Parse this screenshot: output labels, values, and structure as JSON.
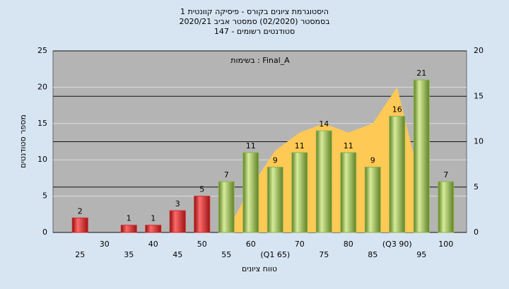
{
  "chart_data": {
    "type": "bar",
    "title": "היסטוגרמת ציונים בקורס - פיסיקה קוונטית 1",
    "subtitle": "בסמסטר  (02/2020)  סמסטר אביב 2020/21",
    "subtitle2": "סטודנטים רשומים - 147",
    "annotation": "בשימות : Final_A",
    "x_label": "טווח ציונים",
    "y_label": "מספר סטודנטים",
    "categories": [
      "25",
      "30",
      "35",
      "40",
      "45",
      "50",
      "55",
      "60",
      "(Q1 65)",
      "70",
      "75",
      "80",
      "85",
      "(Q3 90)",
      "95",
      "100"
    ],
    "values": [
      2,
      null,
      1,
      1,
      3,
      5,
      7,
      11,
      9,
      11,
      14,
      11,
      9,
      16,
      21,
      7
    ],
    "colors": [
      "#d42a2a",
      "#d42a2a",
      "#d42a2a",
      "#d42a2a",
      "#d42a2a",
      "#d42a2a",
      "#8db64a",
      "#8db64a",
      "#8db64a",
      "#8db64a",
      "#8db64a",
      "#8db64a",
      "#8db64a",
      "#8db64a",
      "#8db64a",
      "#8db64a"
    ],
    "area": {
      "color": "#ffc955",
      "axis": "y2",
      "values": [
        null,
        null,
        null,
        null,
        null,
        null,
        0,
        5,
        9,
        11,
        12,
        11,
        12,
        16,
        5,
        null
      ]
    },
    "ylim": [
      0,
      25
    ],
    "yticks": [
      0,
      5,
      10,
      15,
      20,
      25
    ],
    "y2lim": [
      0,
      20
    ],
    "y2ticks": [
      0,
      5,
      10,
      15,
      20
    ],
    "grid": true
  }
}
